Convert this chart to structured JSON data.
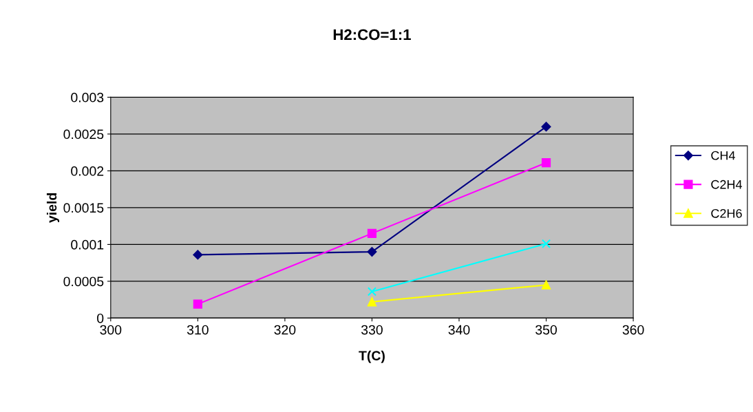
{
  "chart_data": {
    "type": "line",
    "title": "H2:CO=1:1",
    "xlabel": "T(C)",
    "ylabel": "yield",
    "xlim": [
      300,
      360
    ],
    "xticks": [
      300,
      310,
      320,
      330,
      340,
      350,
      360
    ],
    "ylim": [
      0,
      0.003
    ],
    "yticks": [
      0,
      0.0005,
      0.001,
      0.0015,
      0.002,
      0.0025,
      0.003
    ],
    "grid": "y",
    "legend": "right",
    "line_style": "solid",
    "series": [
      {
        "name": "CH4",
        "color": "#000080",
        "marker": "diamond",
        "x": [
          310,
          330,
          350
        ],
        "values": [
          0.00086,
          0.0009,
          0.0026
        ]
      },
      {
        "name": "C2H4",
        "color": "#ff00ff",
        "marker": "square",
        "x": [
          310,
          330,
          350
        ],
        "values": [
          0.00019,
          0.00115,
          0.00211
        ]
      },
      {
        "name": "C2H6",
        "color": "#ffff00",
        "marker": "triangle",
        "x": [
          330,
          350
        ],
        "values": [
          0.00022,
          0.00045
        ]
      },
      {
        "color": "#00ffff",
        "marker": "cross",
        "x": [
          330,
          350
        ],
        "values": [
          0.00036,
          0.00101
        ]
      }
    ]
  }
}
